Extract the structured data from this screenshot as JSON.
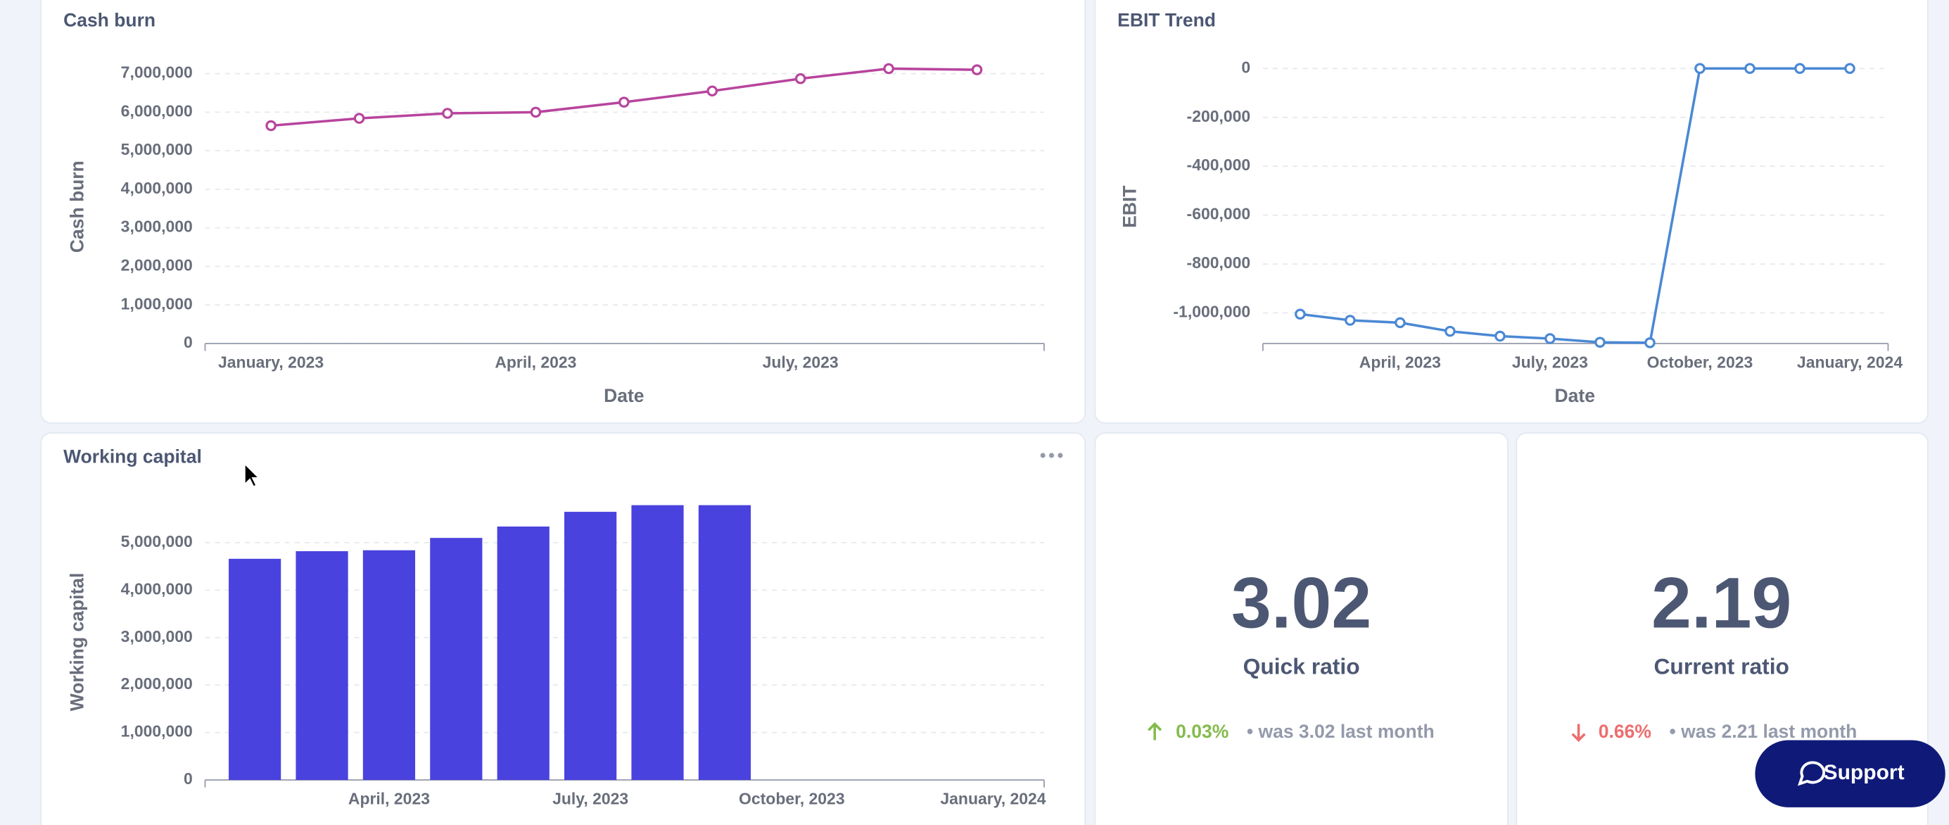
{
  "chart_data": [
    {
      "type": "line",
      "title": "Cash burn",
      "y_label": "Cash burn",
      "x_label": "Date",
      "color": "#b8449d",
      "categories": [
        "January, 2023",
        null,
        null,
        "April, 2023",
        null,
        null,
        "July, 2023",
        null,
        null
      ],
      "values": [
        5650000,
        5840000,
        5970000,
        6000000,
        6260000,
        6550000,
        6870000,
        7130000,
        7100000
      ],
      "ylim": [
        0,
        7500000
      ],
      "yticks": [
        0,
        {
          "value": 1000000,
          "label": "1,000,000"
        },
        {
          "value": 2000000,
          "label": "2,000,000"
        },
        {
          "value": 3000000,
          "label": "3,000,000"
        },
        {
          "value": 4000000,
          "label": "4,000,000"
        },
        {
          "value": 5000000,
          "label": "5,000,000"
        },
        {
          "value": 6000000,
          "label": "6,000,000"
        },
        {
          "value": 7000000,
          "label": "7,000,000"
        }
      ],
      "grid": true
    },
    {
      "type": "line",
      "title": "EBIT Trend",
      "y_label": "EBIT",
      "x_label": "Date",
      "color": "#4a88d4",
      "categories": [
        null,
        null,
        "April, 2023",
        null,
        null,
        "July, 2023",
        null,
        null,
        "October, 2023",
        null,
        null,
        "January, 2024"
      ],
      "values": [
        -1005000,
        -1030000,
        -1040000,
        -1075000,
        -1095000,
        -1105000,
        -1120000,
        -1122000,
        0,
        0,
        0,
        0
      ],
      "ylim": [
        -1125000,
        50000
      ],
      "yticks": [
        {
          "value": -1000000,
          "label": "-1,000,000"
        },
        {
          "value": -800000,
          "label": "-800,000"
        },
        {
          "value": -600000,
          "label": "-600,000"
        },
        {
          "value": -400000,
          "label": "-400,000"
        },
        {
          "value": -200000,
          "label": "-200,000"
        },
        0
      ],
      "grid": true
    },
    {
      "type": "bar",
      "title": "Working capital",
      "y_label": "Working capital",
      "color": "#4a42de",
      "categories": [
        null,
        null,
        "April, 2023",
        null,
        null,
        "July, 2023",
        null,
        null,
        "October, 2023",
        null,
        null,
        "January, 2024"
      ],
      "values": [
        4660000,
        4820000,
        4840000,
        5100000,
        5340000,
        5650000,
        5790000,
        5790000,
        null,
        null,
        null,
        null
      ],
      "ylim": [
        0,
        6000000
      ],
      "yticks": [
        0,
        {
          "value": 1000000,
          "label": "1,000,000"
        },
        {
          "value": 2000000,
          "label": "2,000,000"
        },
        {
          "value": 3000000,
          "label": "3,000,000"
        },
        {
          "value": 4000000,
          "label": "4,000,000"
        },
        {
          "value": 5000000,
          "label": "5,000,000"
        }
      ],
      "grid": true
    }
  ],
  "kpis": [
    {
      "value": "3.02",
      "label": "Quick ratio",
      "change": "0.03%",
      "note": "• was 3.02 last month"
    },
    {
      "value": "2.19",
      "label": "Current ratio",
      "change": "0.66%",
      "note": "• was 2.21 last month"
    }
  ],
  "support": "Support"
}
